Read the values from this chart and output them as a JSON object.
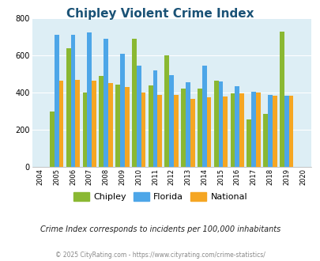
{
  "title": "Chipley Violent Crime Index",
  "years": [
    2004,
    2005,
    2006,
    2007,
    2008,
    2009,
    2010,
    2011,
    2012,
    2013,
    2014,
    2015,
    2016,
    2017,
    2018,
    2019,
    2020
  ],
  "chipley": [
    null,
    300,
    640,
    400,
    490,
    445,
    690,
    440,
    600,
    420,
    420,
    465,
    395,
    255,
    285,
    730,
    null
  ],
  "florida": [
    null,
    710,
    710,
    725,
    690,
    610,
    545,
    520,
    495,
    455,
    545,
    460,
    435,
    405,
    390,
    385,
    null
  ],
  "national": [
    null,
    465,
    470,
    465,
    450,
    430,
    400,
    390,
    390,
    365,
    375,
    380,
    395,
    400,
    385,
    385,
    null
  ],
  "chipley_color": "#8ab832",
  "florida_color": "#4da6e8",
  "national_color": "#f5a623",
  "plot_bg": "#ddeef5",
  "ylim": [
    0,
    800
  ],
  "yticks": [
    0,
    200,
    400,
    600,
    800
  ],
  "title_color": "#1a5276",
  "title_fontsize": 11,
  "legend_labels": [
    "Chipley",
    "Florida",
    "National"
  ],
  "subtitle": "Crime Index corresponds to incidents per 100,000 inhabitants",
  "footer": "© 2025 CityRating.com - https://www.cityrating.com/crime-statistics/",
  "bar_width": 0.28
}
